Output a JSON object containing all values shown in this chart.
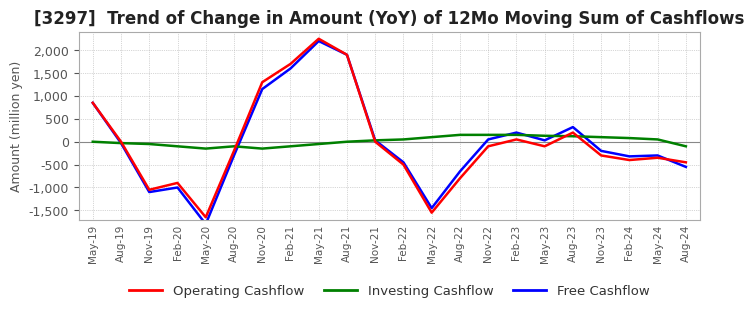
{
  "title": "[3297]  Trend of Change in Amount (YoY) of 12Mo Moving Sum of Cashflows",
  "ylabel": "Amount (million yen)",
  "ylim": [
    -1700,
    2400
  ],
  "yticks": [
    -1500,
    -1000,
    -500,
    0,
    500,
    1000,
    1500,
    2000
  ],
  "legend_labels": [
    "Operating Cashflow",
    "Investing Cashflow",
    "Free Cashflow"
  ],
  "legend_colors": [
    "#ff0000",
    "#008000",
    "#0000ff"
  ],
  "x_labels": [
    "May-19",
    "Aug-19",
    "Nov-19",
    "Feb-20",
    "May-20",
    "Aug-20",
    "Nov-20",
    "Feb-21",
    "May-21",
    "Aug-21",
    "Nov-21",
    "Feb-22",
    "May-22",
    "Aug-22",
    "Nov-22",
    "Feb-23",
    "May-23",
    "Aug-23",
    "Nov-23",
    "Feb-24",
    "May-24",
    "Aug-24"
  ],
  "operating": [
    850,
    0,
    -1050,
    -900,
    -1650,
    -200,
    1300,
    1700,
    2250,
    1900,
    0,
    -500,
    -1550,
    -800,
    -100,
    50,
    -100,
    200,
    -300,
    -400,
    -350,
    -450
  ],
  "investing": [
    0,
    -30,
    -50,
    -100,
    -150,
    -100,
    -150,
    -100,
    -50,
    0,
    30,
    50,
    100,
    150,
    150,
    150,
    130,
    120,
    100,
    80,
    50,
    -100
  ],
  "free": [
    850,
    -30,
    -1100,
    -1000,
    -1800,
    -300,
    1150,
    1600,
    2200,
    1900,
    30,
    -450,
    -1450,
    -650,
    50,
    200,
    30,
    320,
    -200,
    -320,
    -300,
    -550
  ],
  "background_color": "#ffffff",
  "grid_color": "#b0b0b0",
  "title_fontsize": 12,
  "axis_fontsize": 9
}
